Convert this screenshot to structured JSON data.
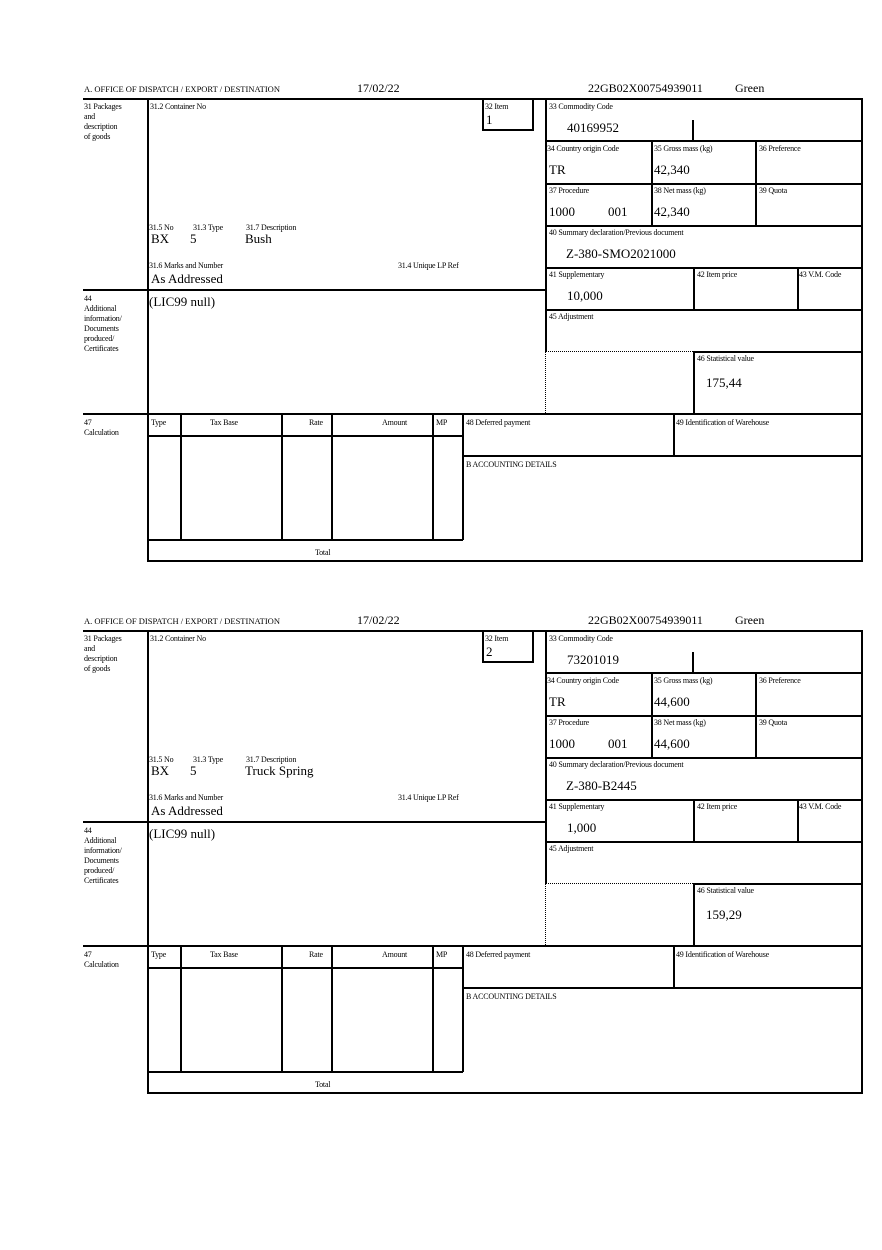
{
  "labels": {
    "office": "A. OFFICE OF DISPATCH / EXPORT / DESTINATION",
    "b31": "31 Packages\nand\ndescription\nof goods",
    "b31_2": "31.2 Container No",
    "b32": "32 Item",
    "b33": "33 Commodity Code",
    "b34": "34 Country origin Code",
    "b35": "35 Gross mass (kg)",
    "b36": "36 Preference",
    "b37": "37 Procedure",
    "b38": "38 Net mass (kg)",
    "b39": "39 Quota",
    "b40": "40 Summary declaration/Previous document",
    "b31_5": "31.5 No",
    "b31_3": "31.3 Type",
    "b31_7": "31.7 Description",
    "b31_6": "31.6 Marks and Number",
    "b31_4": "31.4 Unique LP Ref",
    "b41": "41 Supplementary",
    "b42": "42 Item price",
    "b43": "43 V.M. Code",
    "b44": "44\nAdditional\ninformation/\nDocuments\nproduced/\nCertificates",
    "b45": "45 Adjustment",
    "b46": "46 Statistical value",
    "b47": "47\nCalculation",
    "type": "Type",
    "tax_base": "Tax Base",
    "rate": "Rate",
    "amount": "Amount",
    "mp": "MP",
    "b48": "48 Deferred payment",
    "b49": "49 Identification of Warehouse",
    "accounting": "B ACCOUNTING DETAILS",
    "total": "Total"
  },
  "items": [
    {
      "date": "17/02/22",
      "reference": "22GB02X00754939011",
      "route": "Green",
      "item_no": "1",
      "commodity_code": "40169952",
      "country_origin": "TR",
      "gross_mass": "42,340",
      "procedure": "1000",
      "procedure_add": "001",
      "net_mass": "42,340",
      "prev_document": "Z-380-SMO2021000",
      "pkg_no": "BX",
      "pkg_type": "5",
      "description": "Bush",
      "marks": "As Addressed",
      "supplementary": "10,000",
      "additional_info": "(LIC99 null)",
      "statistical_value": "175,44"
    },
    {
      "date": "17/02/22",
      "reference": "22GB02X00754939011",
      "route": "Green",
      "item_no": "2",
      "commodity_code": "73201019",
      "country_origin": "TR",
      "gross_mass": "44,600",
      "procedure": "1000",
      "procedure_add": "001",
      "net_mass": "44,600",
      "prev_document": "Z-380-B2445",
      "pkg_no": "BX",
      "pkg_type": "5",
      "description": "Truck Spring",
      "marks": "As Addressed",
      "supplementary": "1,000",
      "additional_info": "(LIC99 null)",
      "statistical_value": "159,29"
    }
  ]
}
